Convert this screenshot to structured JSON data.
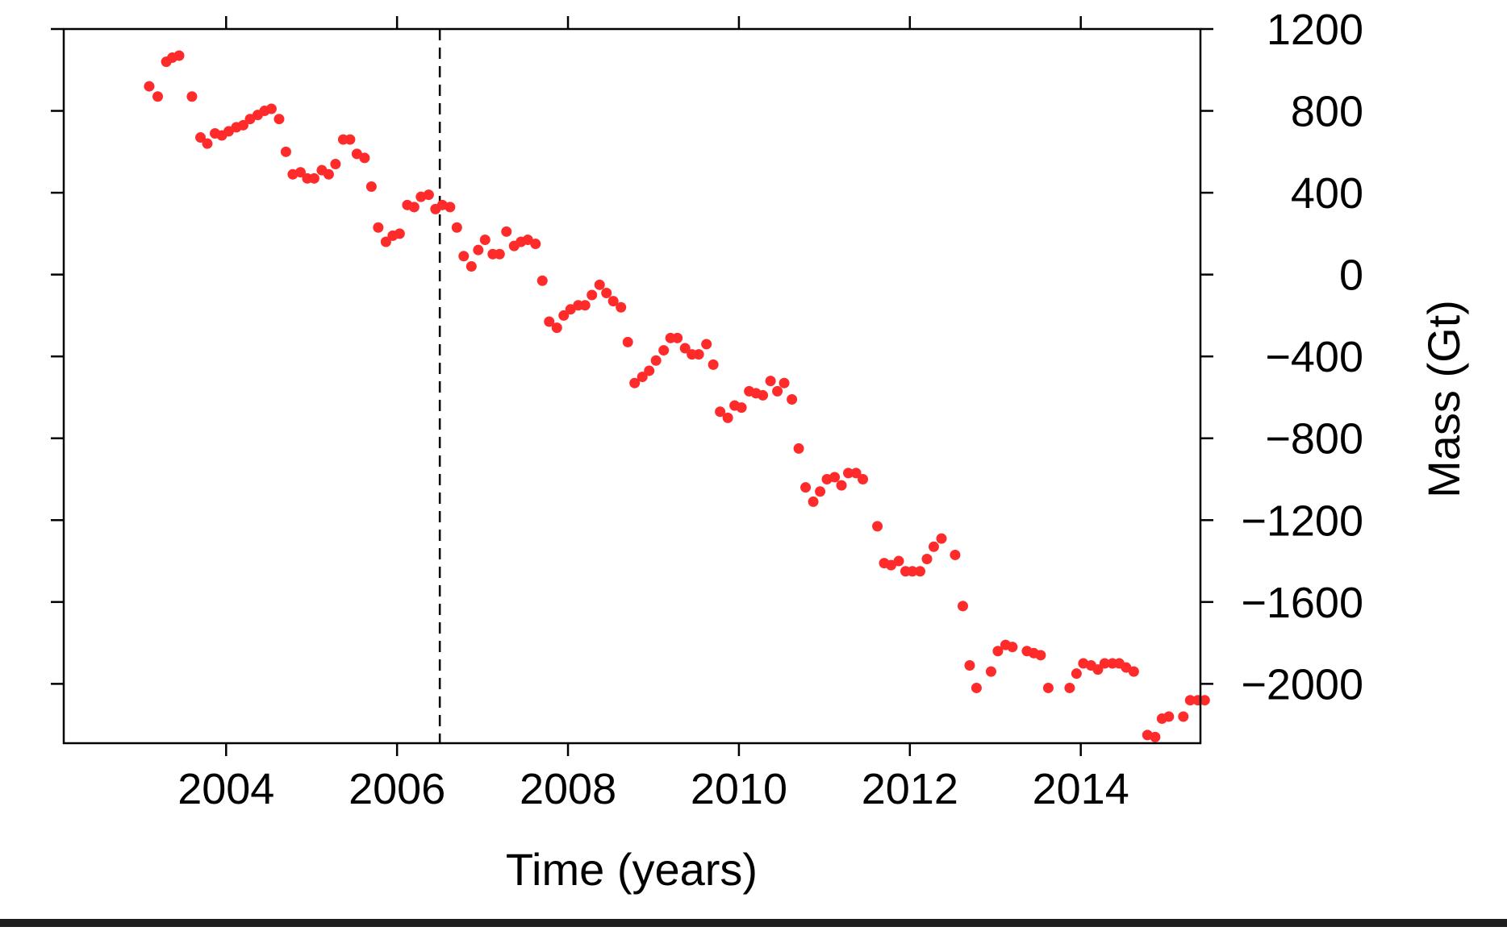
{
  "chart_data": {
    "type": "scatter",
    "title": "",
    "xlabel": "Time (years)",
    "ylabel": "Mass (Gt)",
    "xlim": [
      2002.1,
      2015.4
    ],
    "ylim": [
      -2290,
      1200
    ],
    "x_ticks": [
      2004,
      2006,
      2008,
      2010,
      2012,
      2014
    ],
    "x_tick_labels": [
      "2004",
      "2006",
      "2008",
      "2010",
      "2012",
      "2014"
    ],
    "y_ticks": [
      1200,
      800,
      400,
      0,
      -400,
      -800,
      -1200,
      -1600,
      -2000
    ],
    "y_tick_labels": [
      "1200",
      "800",
      "400",
      "0",
      "−400",
      "−800",
      "−1200",
      "−1600",
      "−2000"
    ],
    "y_axis_side": "right",
    "grid": false,
    "legend": "none",
    "vline": {
      "x": 2006.5,
      "style": "dashed"
    },
    "marker_color": "#ff2a2a",
    "series": [
      {
        "points": [
          [
            2003.1,
            920
          ],
          [
            2003.2,
            870
          ],
          [
            2003.3,
            1040
          ],
          [
            2003.37,
            1060
          ],
          [
            2003.45,
            1070
          ],
          [
            2003.6,
            870
          ],
          [
            2003.7,
            670
          ],
          [
            2003.78,
            640
          ],
          [
            2003.87,
            690
          ],
          [
            2003.95,
            680
          ],
          [
            2004.03,
            700
          ],
          [
            2004.12,
            720
          ],
          [
            2004.2,
            730
          ],
          [
            2004.28,
            760
          ],
          [
            2004.37,
            780
          ],
          [
            2004.45,
            800
          ],
          [
            2004.53,
            810
          ],
          [
            2004.62,
            760
          ],
          [
            2004.7,
            600
          ],
          [
            2004.78,
            490
          ],
          [
            2004.87,
            500
          ],
          [
            2004.95,
            470
          ],
          [
            2005.03,
            470
          ],
          [
            2005.12,
            510
          ],
          [
            2005.2,
            490
          ],
          [
            2005.28,
            540
          ],
          [
            2005.37,
            660
          ],
          [
            2005.45,
            660
          ],
          [
            2005.53,
            590
          ],
          [
            2005.62,
            570
          ],
          [
            2005.7,
            430
          ],
          [
            2005.78,
            230
          ],
          [
            2005.87,
            160
          ],
          [
            2005.95,
            190
          ],
          [
            2006.03,
            200
          ],
          [
            2006.12,
            340
          ],
          [
            2006.2,
            330
          ],
          [
            2006.28,
            380
          ],
          [
            2006.37,
            390
          ],
          [
            2006.45,
            320
          ],
          [
            2006.53,
            340
          ],
          [
            2006.62,
            330
          ],
          [
            2006.7,
            230
          ],
          [
            2006.78,
            90
          ],
          [
            2006.87,
            40
          ],
          [
            2006.95,
            120
          ],
          [
            2007.03,
            170
          ],
          [
            2007.12,
            100
          ],
          [
            2007.2,
            100
          ],
          [
            2007.28,
            210
          ],
          [
            2007.37,
            140
          ],
          [
            2007.45,
            160
          ],
          [
            2007.53,
            170
          ],
          [
            2007.62,
            150
          ],
          [
            2007.7,
            -30
          ],
          [
            2007.78,
            -230
          ],
          [
            2007.87,
            -260
          ],
          [
            2007.95,
            -200
          ],
          [
            2008.03,
            -170
          ],
          [
            2008.12,
            -150
          ],
          [
            2008.2,
            -150
          ],
          [
            2008.28,
            -100
          ],
          [
            2008.37,
            -50
          ],
          [
            2008.45,
            -90
          ],
          [
            2008.53,
            -130
          ],
          [
            2008.62,
            -160
          ],
          [
            2008.7,
            -330
          ],
          [
            2008.78,
            -530
          ],
          [
            2008.87,
            -500
          ],
          [
            2008.95,
            -470
          ],
          [
            2009.03,
            -420
          ],
          [
            2009.12,
            -370
          ],
          [
            2009.2,
            -310
          ],
          [
            2009.28,
            -310
          ],
          [
            2009.37,
            -360
          ],
          [
            2009.45,
            -390
          ],
          [
            2009.53,
            -390
          ],
          [
            2009.62,
            -340
          ],
          [
            2009.7,
            -440
          ],
          [
            2009.78,
            -670
          ],
          [
            2009.87,
            -700
          ],
          [
            2009.95,
            -640
          ],
          [
            2010.03,
            -650
          ],
          [
            2010.12,
            -570
          ],
          [
            2010.2,
            -580
          ],
          [
            2010.28,
            -590
          ],
          [
            2010.37,
            -520
          ],
          [
            2010.45,
            -570
          ],
          [
            2010.53,
            -530
          ],
          [
            2010.62,
            -610
          ],
          [
            2010.7,
            -850
          ],
          [
            2010.78,
            -1040
          ],
          [
            2010.87,
            -1110
          ],
          [
            2010.95,
            -1060
          ],
          [
            2011.03,
            -1000
          ],
          [
            2011.12,
            -990
          ],
          [
            2011.2,
            -1030
          ],
          [
            2011.28,
            -970
          ],
          [
            2011.37,
            -970
          ],
          [
            2011.45,
            -1000
          ],
          [
            2011.62,
            -1230
          ],
          [
            2011.7,
            -1410
          ],
          [
            2011.78,
            -1420
          ],
          [
            2011.87,
            -1400
          ],
          [
            2011.95,
            -1450
          ],
          [
            2012.03,
            -1450
          ],
          [
            2012.12,
            -1450
          ],
          [
            2012.2,
            -1390
          ],
          [
            2012.28,
            -1330
          ],
          [
            2012.37,
            -1290
          ],
          [
            2012.53,
            -1370
          ],
          [
            2012.62,
            -1620
          ],
          [
            2012.7,
            -1910
          ],
          [
            2012.78,
            -2020
          ],
          [
            2012.95,
            -1940
          ],
          [
            2013.03,
            -1840
          ],
          [
            2013.12,
            -1810
          ],
          [
            2013.2,
            -1820
          ],
          [
            2013.37,
            -1840
          ],
          [
            2013.45,
            -1850
          ],
          [
            2013.53,
            -1860
          ],
          [
            2013.62,
            -2020
          ],
          [
            2013.87,
            -2020
          ],
          [
            2013.95,
            -1950
          ],
          [
            2014.03,
            -1900
          ],
          [
            2014.12,
            -1910
          ],
          [
            2014.2,
            -1930
          ],
          [
            2014.28,
            -1900
          ],
          [
            2014.37,
            -1900
          ],
          [
            2014.45,
            -1900
          ],
          [
            2014.53,
            -1920
          ],
          [
            2014.62,
            -1940
          ],
          [
            2014.78,
            -2250
          ],
          [
            2014.87,
            -2260
          ],
          [
            2014.95,
            -2170
          ],
          [
            2015.03,
            -2160
          ],
          [
            2015.2,
            -2160
          ],
          [
            2015.28,
            -2080
          ],
          [
            2015.37,
            -2080
          ],
          [
            2015.45,
            -2080
          ]
        ]
      }
    ]
  }
}
